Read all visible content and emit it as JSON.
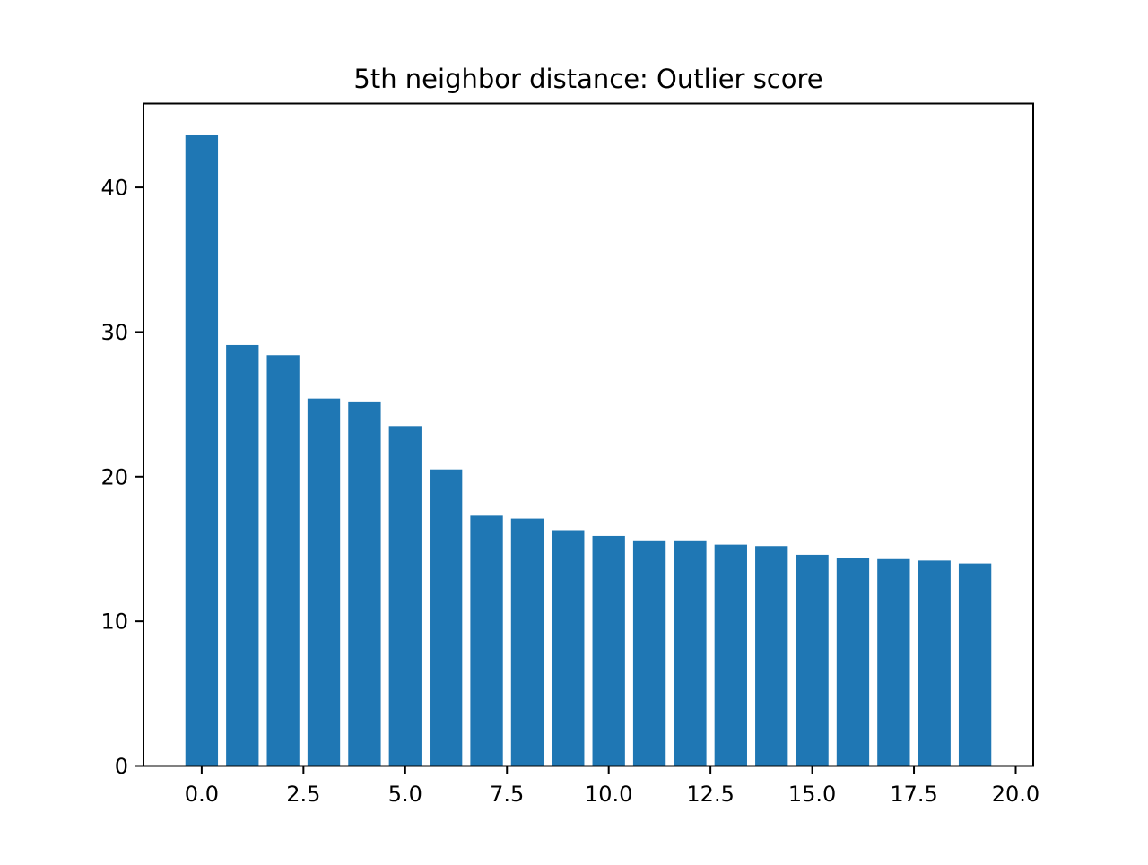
{
  "chart_data": {
    "type": "bar",
    "title": "5th neighbor distance: Outlier score",
    "xlabel": "",
    "ylabel": "",
    "x": [
      0,
      1,
      2,
      3,
      4,
      5,
      6,
      7,
      8,
      9,
      10,
      11,
      12,
      13,
      14,
      15,
      16,
      17,
      18,
      19
    ],
    "values": [
      43.6,
      29.1,
      28.4,
      25.4,
      25.2,
      23.5,
      20.5,
      17.3,
      17.1,
      16.3,
      15.9,
      15.6,
      15.6,
      15.3,
      15.2,
      14.6,
      14.4,
      14.3,
      14.2,
      14.0
    ],
    "xlim": [
      -1.43,
      20.43
    ],
    "ylim": [
      0,
      45.8
    ],
    "xticks": [
      0.0,
      2.5,
      5.0,
      7.5,
      10.0,
      12.5,
      15.0,
      17.5,
      20.0
    ],
    "xtick_labels": [
      "0.0",
      "2.5",
      "5.0",
      "7.5",
      "10.0",
      "12.5",
      "15.0",
      "17.5",
      "20.0"
    ],
    "yticks": [
      0,
      10,
      20,
      30,
      40
    ],
    "ytick_labels": [
      "0",
      "10",
      "20",
      "30",
      "40"
    ],
    "grid": false,
    "bar_color": "#1f77b4"
  }
}
